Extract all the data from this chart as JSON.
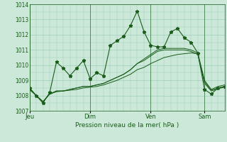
{
  "bg_color": "#cbe8d8",
  "grid_color": "#9dcfbb",
  "line_color": "#1a5c1a",
  "marker_color": "#1a5c1a",
  "title": "Pression niveau de la mer( hPa )",
  "ylim": [
    1007,
    1014
  ],
  "yticks": [
    1007,
    1008,
    1009,
    1010,
    1011,
    1012,
    1013,
    1014
  ],
  "day_labels": [
    "Jeu",
    "Dim",
    "Ven",
    "Sam"
  ],
  "day_positions": [
    0,
    9,
    18,
    26
  ],
  "n_points": 30,
  "series1": [
    1008.5,
    1008.0,
    1007.5,
    1008.2,
    1010.2,
    1009.8,
    1009.3,
    1009.8,
    1010.3,
    1009.1,
    1009.5,
    1009.3,
    1011.3,
    1011.6,
    1011.9,
    1012.6,
    1013.55,
    1012.2,
    1011.3,
    1011.2,
    1011.2,
    1012.2,
    1012.4,
    1011.8,
    1011.5,
    1010.8,
    1008.4,
    1008.1,
    1008.5,
    1008.6
  ],
  "series2": [
    1008.4,
    1008.0,
    1007.6,
    1008.1,
    1008.3,
    1008.3,
    1008.4,
    1008.5,
    1008.6,
    1008.6,
    1008.7,
    1008.8,
    1009.0,
    1009.2,
    1009.4,
    1009.7,
    1010.1,
    1010.4,
    1010.7,
    1011.0,
    1011.1,
    1011.1,
    1011.1,
    1011.1,
    1011.0,
    1010.8,
    1009.0,
    1008.4,
    1008.6,
    1008.7
  ],
  "series3": [
    1008.5,
    1008.0,
    1007.6,
    1008.1,
    1008.3,
    1008.3,
    1008.4,
    1008.5,
    1008.6,
    1008.6,
    1008.7,
    1008.8,
    1009.0,
    1009.2,
    1009.4,
    1009.7,
    1010.1,
    1010.3,
    1010.6,
    1010.9,
    1011.0,
    1011.0,
    1011.0,
    1011.0,
    1010.9,
    1010.7,
    1008.9,
    1008.35,
    1008.5,
    1008.6
  ],
  "series4": [
    1008.4,
    1008.0,
    1007.6,
    1008.1,
    1008.25,
    1008.3,
    1008.35,
    1008.4,
    1008.5,
    1008.55,
    1008.6,
    1008.7,
    1008.85,
    1009.0,
    1009.2,
    1009.4,
    1009.7,
    1009.85,
    1010.1,
    1010.3,
    1010.5,
    1010.6,
    1010.7,
    1010.75,
    1010.8,
    1010.75,
    1008.8,
    1008.3,
    1008.45,
    1008.55
  ]
}
